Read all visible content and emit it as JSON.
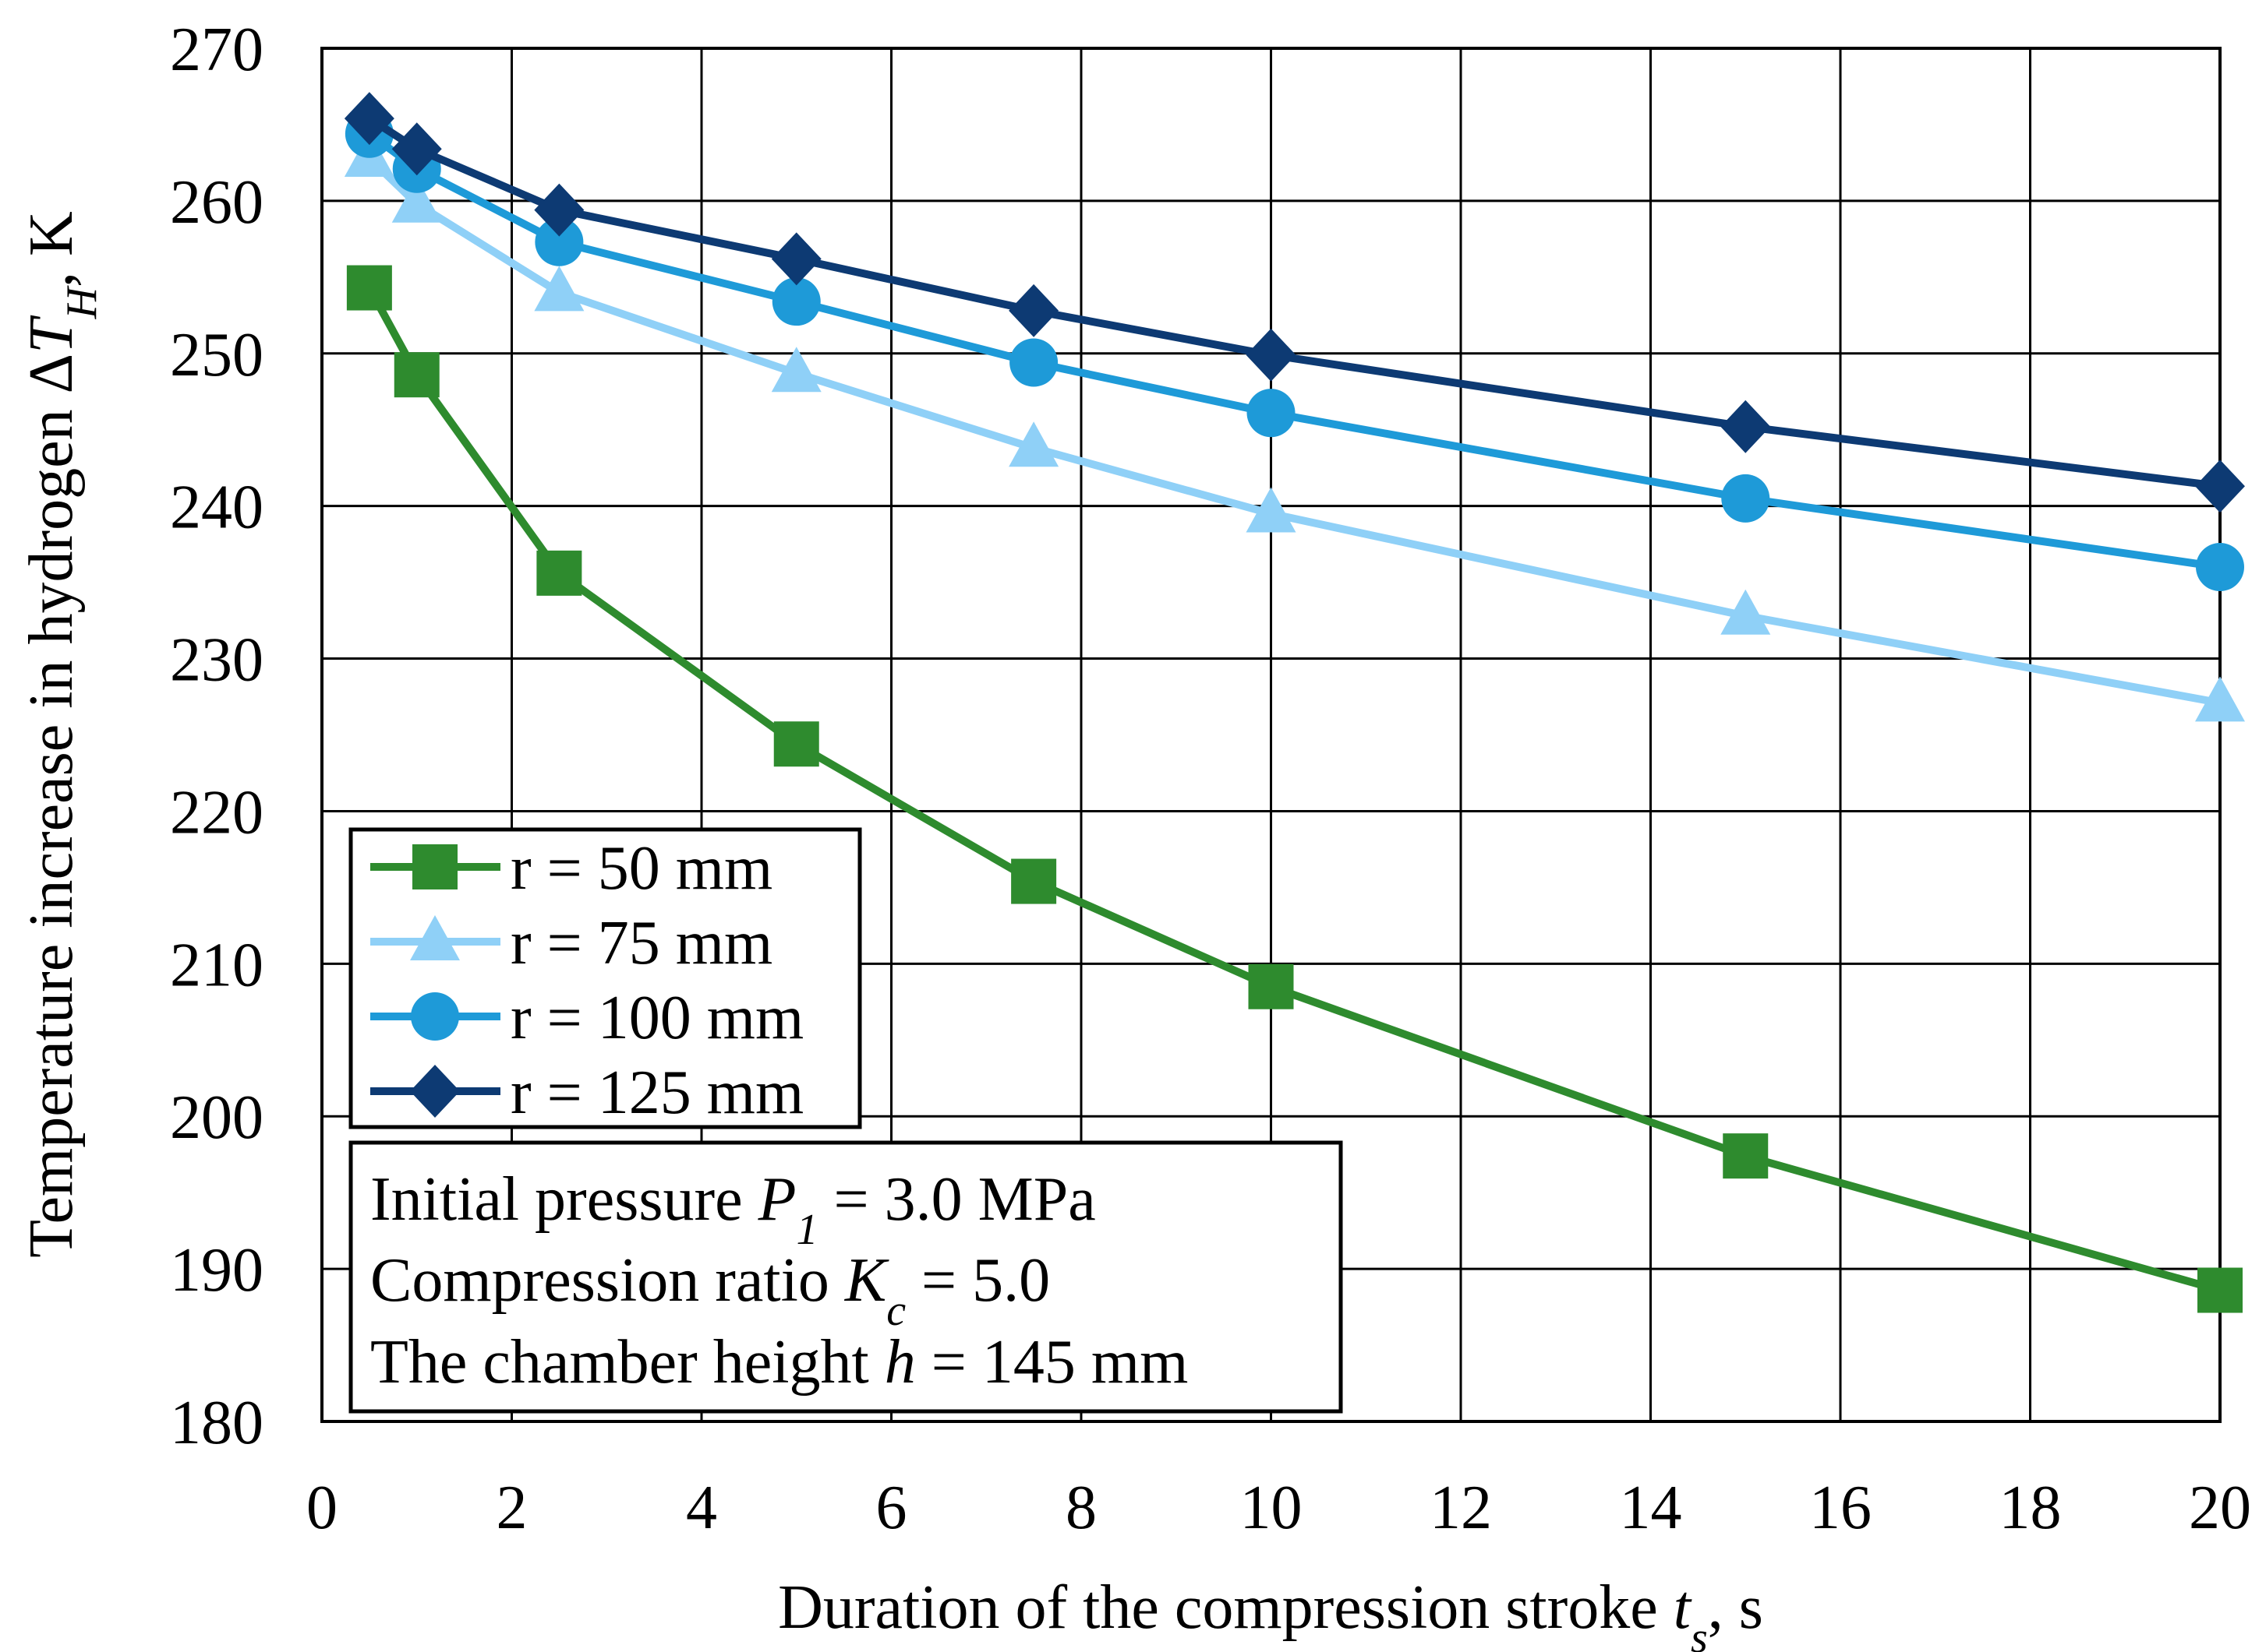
{
  "chart_data": {
    "type": "line",
    "title": "",
    "xlabel": {
      "text": "Duration of the compression stroke ",
      "var": "t",
      "sub": "s",
      "unit": ", s"
    },
    "ylabel": {
      "text": "Temperature increase in hydrogen Δ",
      "var": "T",
      "sub": "H",
      "unit": ", K"
    },
    "xlim": [
      0,
      20
    ],
    "ylim": [
      180,
      270
    ],
    "xticks": [
      0,
      2,
      4,
      6,
      8,
      10,
      12,
      14,
      16,
      18,
      20
    ],
    "yticks": [
      180,
      190,
      200,
      210,
      220,
      230,
      240,
      250,
      260,
      270
    ],
    "grid": true,
    "legend_position": "bottom-left",
    "x": [
      0.5,
      1,
      2.5,
      5,
      7.5,
      10,
      15,
      20
    ],
    "series": [
      {
        "name": "r = 50 mm",
        "marker": "square",
        "color": "#2e8b2e",
        "values": [
          254.3,
          248.6,
          235.6,
          224.4,
          215.4,
          208.5,
          197.4,
          188.6
        ]
      },
      {
        "name": "r = 75 mm",
        "marker": "triangle",
        "color": "#8fd0f7",
        "values": [
          262.8,
          259.8,
          254.0,
          248.7,
          243.8,
          239.5,
          232.8,
          227.1
        ]
      },
      {
        "name": "r = 100 mm",
        "marker": "circle",
        "color": "#1e9ad8",
        "values": [
          264.4,
          262.1,
          257.3,
          253.4,
          249.4,
          246.1,
          240.5,
          236.0
        ]
      },
      {
        "name": "r = 125 mm",
        "marker": "diamond",
        "color": "#0d3a73",
        "values": [
          265.4,
          263.4,
          259.4,
          256.2,
          252.8,
          249.9,
          245.2,
          241.3
        ]
      }
    ],
    "annotations": [
      {
        "text": "Initial pressure ",
        "var": "P",
        "sub": "1",
        "rest": " = 3.0 MPa"
      },
      {
        "text": "Compression ratio ",
        "var": "K",
        "sub": "c",
        "rest": " = 5.0"
      },
      {
        "text": "The chamber height ",
        "var": "h",
        "sub": "",
        "rest": " = 145 mm"
      }
    ]
  }
}
